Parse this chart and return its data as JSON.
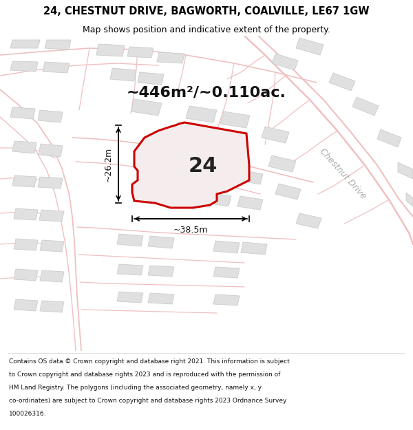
{
  "title_line1": "24, CHESTNUT DRIVE, BAGWORTH, COALVILLE, LE67 1GW",
  "title_line2": "Map shows position and indicative extent of the property.",
  "area_text": "~446m²/~0.110ac.",
  "label_24": "24",
  "dim_width": "~38.5m",
  "dim_height": "~26.2m",
  "road_label": "Chestnut Drive",
  "footer_lines": [
    "Contains OS data © Crown copyright and database right 2021. This information is subject",
    "to Crown copyright and database rights 2023 and is reproduced with the permission of",
    "HM Land Registry. The polygons (including the associated geometry, namely x, y",
    "co-ordinates) are subject to Crown copyright and database rights 2023 Ordnance Survey",
    "100026316."
  ],
  "map_bg": "#f7f3f3",
  "plot_fill": "#f2eded",
  "plot_edge": "#dd0000",
  "road_color": "#f0c0c0",
  "building_fill": "#e0e0e0",
  "building_edge": "#cccccc",
  "title_fontsize": 10.5,
  "subtitle_fontsize": 9.0,
  "area_fontsize": 16,
  "label_fontsize": 22,
  "dim_fontsize": 9,
  "road_label_fontsize": 9,
  "footer_fontsize": 6.5
}
